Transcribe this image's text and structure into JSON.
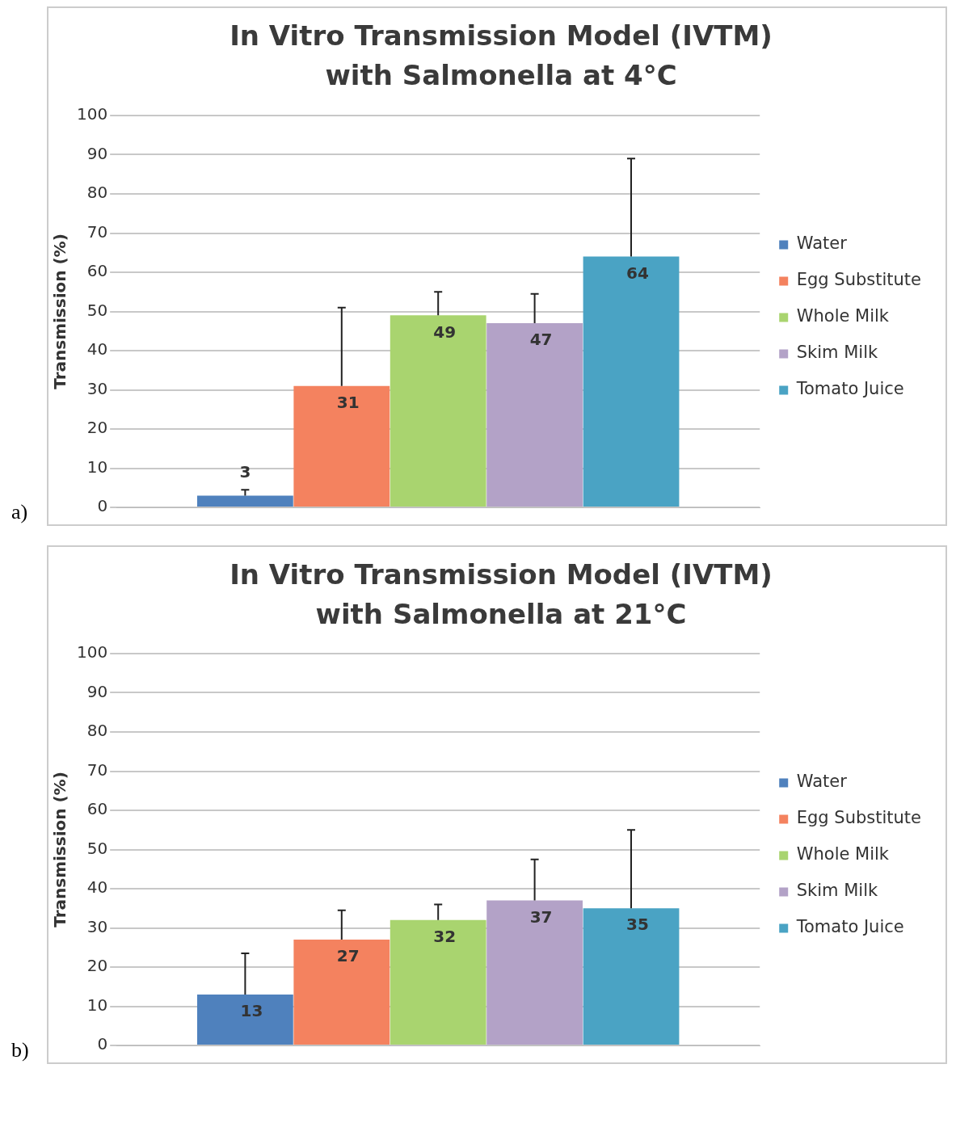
{
  "chart_data": [
    {
      "type": "bar",
      "title": "In Vitro Transmission Model (IVTM) with Salmonella at 4°C",
      "ylabel": "Transmission (%)",
      "categories": [
        null
      ],
      "ylim": [
        0,
        100
      ],
      "yticks": [
        0,
        10,
        20,
        30,
        40,
        50,
        60,
        70,
        80,
        90,
        100
      ],
      "grid": "y",
      "legend": "right",
      "data_labels": true,
      "annotations": [
        "a)"
      ],
      "series": [
        {
          "name": "Water",
          "color": "#4f81bd",
          "values": [
            3
          ],
          "errors": [
            [
              3,
              4.5
            ]
          ]
        },
        {
          "name": "Egg Substitute",
          "color": "#f4825f",
          "values": [
            31
          ],
          "errors": [
            [
              31,
              51
            ]
          ]
        },
        {
          "name": "Whole Milk",
          "color": "#a9d46f",
          "values": [
            49
          ],
          "errors": [
            [
              49,
              55
            ]
          ]
        },
        {
          "name": "Skim Milk",
          "color": "#b3a2c7",
          "values": [
            47
          ],
          "errors": [
            [
              47,
              54.5
            ]
          ]
        },
        {
          "name": "Tomato Juice",
          "color": "#4aa3c4",
          "values": [
            64
          ],
          "errors": [
            [
              64,
              89
            ]
          ]
        }
      ]
    },
    {
      "type": "bar",
      "title": "In Vitro Transmission Model (IVTM) with Salmonella at 21°C",
      "ylabel": "Transmission (%)",
      "categories": [
        null
      ],
      "ylim": [
        0,
        100
      ],
      "yticks": [
        0,
        10,
        20,
        30,
        40,
        50,
        60,
        70,
        80,
        90,
        100
      ],
      "grid": "y",
      "legend": "right",
      "data_labels": true,
      "annotations": [
        "b)"
      ],
      "series": [
        {
          "name": "Water",
          "color": "#4f81bd",
          "values": [
            13
          ],
          "errors": [
            [
              13,
              23.5
            ]
          ]
        },
        {
          "name": "Egg Substitute",
          "color": "#f4825f",
          "values": [
            27
          ],
          "errors": [
            [
              27,
              34.5
            ]
          ]
        },
        {
          "name": "Whole Milk",
          "color": "#a9d46f",
          "values": [
            32
          ],
          "errors": [
            [
              32,
              36
            ]
          ]
        },
        {
          "name": "Skim Milk",
          "color": "#b3a2c7",
          "values": [
            37
          ],
          "errors": [
            [
              37,
              47.5
            ]
          ]
        },
        {
          "name": "Tomato Juice",
          "color": "#4aa3c4",
          "values": [
            35
          ],
          "errors": [
            [
              35,
              55
            ]
          ]
        }
      ]
    }
  ]
}
